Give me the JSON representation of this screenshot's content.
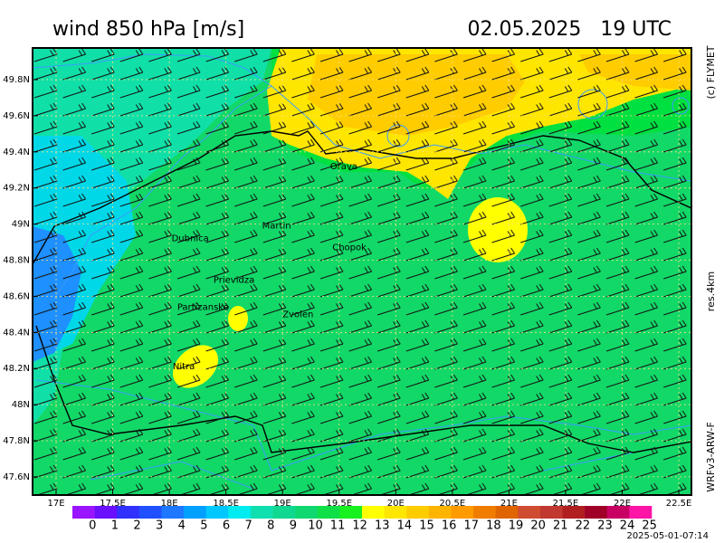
{
  "header": {
    "title": "wind 850 hPa [m/s]",
    "date": "02.05.2025   19 UTC"
  },
  "side": {
    "copyright": "(c) FLYMET",
    "resolution": "res.4km",
    "model": "WRFv3-ARW-F"
  },
  "axes": {
    "lat_ticks": [
      {
        "value": 49.8,
        "label": "49.8N"
      },
      {
        "value": 49.6,
        "label": "49.6N"
      },
      {
        "value": 49.4,
        "label": "49.4N"
      },
      {
        "value": 49.2,
        "label": "49.2N"
      },
      {
        "value": 49,
        "label": "49N"
      },
      {
        "value": 48.8,
        "label": "48.8N"
      },
      {
        "value": 48.6,
        "label": "48.6N"
      },
      {
        "value": 48.4,
        "label": "48.4N"
      },
      {
        "value": 48.2,
        "label": "48.2N"
      },
      {
        "value": 48,
        "label": "48N"
      },
      {
        "value": 47.8,
        "label": "47.8N"
      },
      {
        "value": 47.6,
        "label": "47.6N"
      }
    ],
    "lon_ticks": [
      {
        "value": 17,
        "label": "17E"
      },
      {
        "value": 17.5,
        "label": "17.5E"
      },
      {
        "value": 18,
        "label": "18E"
      },
      {
        "value": 18.5,
        "label": "18.5E"
      },
      {
        "value": 19,
        "label": "19E"
      },
      {
        "value": 19.5,
        "label": "19.5E"
      },
      {
        "value": 20,
        "label": "20E"
      },
      {
        "value": 20.5,
        "label": "20.5E"
      },
      {
        "value": 21,
        "label": "21E"
      },
      {
        "value": 21.5,
        "label": "21.5E"
      },
      {
        "value": 22,
        "label": "22E"
      },
      {
        "value": 22.5,
        "label": "22.5E"
      }
    ]
  },
  "cities": [
    {
      "name": "Orava",
      "lon": 19.42,
      "lat": 49.32
    },
    {
      "name": "Martin",
      "lon": 18.82,
      "lat": 48.99
    },
    {
      "name": "Dubnica",
      "lon": 18.02,
      "lat": 48.92
    },
    {
      "name": "Chopok",
      "lon": 19.44,
      "lat": 48.87
    },
    {
      "name": "Prievidza",
      "lon": 18.39,
      "lat": 48.69
    },
    {
      "name": "Partizanske",
      "lon": 18.07,
      "lat": 48.54
    },
    {
      "name": "Zvolen",
      "lon": 19.0,
      "lat": 48.5
    },
    {
      "name": "Nitra",
      "lon": 18.03,
      "lat": 48.21
    }
  ],
  "colorbar": {
    "levels": [
      0,
      1,
      2,
      3,
      4,
      5,
      6,
      7,
      8,
      9,
      10,
      11,
      12,
      13,
      14,
      15,
      16,
      17,
      18,
      19,
      20,
      21,
      22,
      23,
      24,
      25
    ],
    "colors": [
      "#9a14ff",
      "#6a10ff",
      "#3030ff",
      "#2050ff",
      "#1e78ff",
      "#00a0ff",
      "#00c8ff",
      "#00ecf0",
      "#10e0b0",
      "#10d890",
      "#10d870",
      "#10e048",
      "#18f020",
      "#ffff00",
      "#ffe600",
      "#ffcc00",
      "#ffb400",
      "#ff9a00",
      "#f07c00",
      "#e06400",
      "#d04c30",
      "#c03830",
      "#b01e20",
      "#a00028",
      "#c80064",
      "#ff14a8"
    ]
  },
  "footer": "2025-05-01-07:14"
}
